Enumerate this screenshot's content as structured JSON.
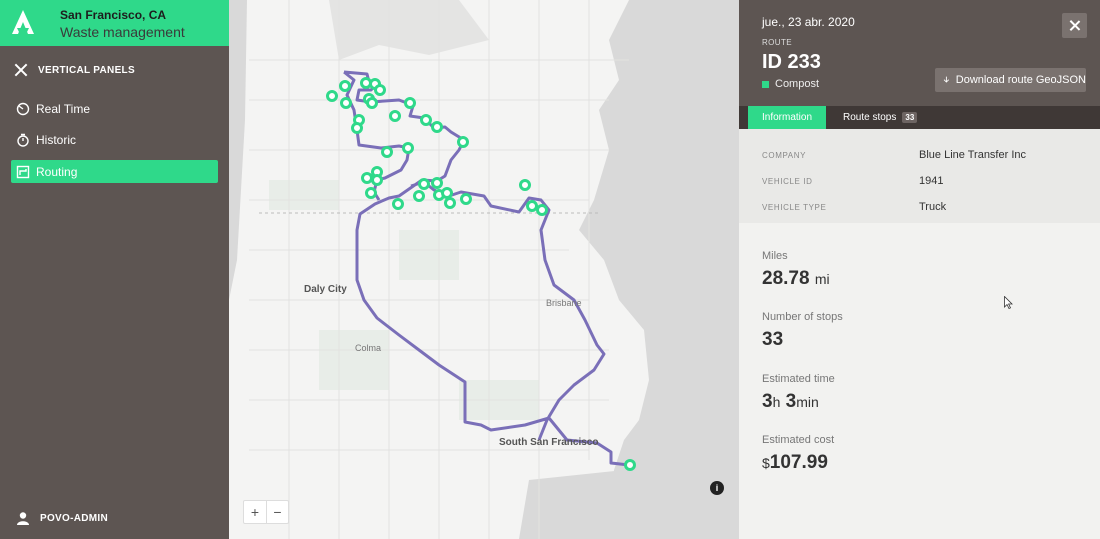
{
  "brand": {
    "city": "San Francisco, CA",
    "subtitle": "Waste management",
    "accent": "#2fd98a",
    "sidebar_bg": "#5d5552"
  },
  "sidebar": {
    "panels_label": "VERTICAL PANELS",
    "items": [
      {
        "label": "Real Time",
        "icon": "speedometer-icon"
      },
      {
        "label": "Historic",
        "icon": "stopwatch-icon"
      },
      {
        "label": "Routing",
        "icon": "route-icon",
        "active": true
      }
    ],
    "user": "POVO-ADMIN"
  },
  "map": {
    "labels": {
      "daly_city": "Daly City",
      "colma": "Colma",
      "brisbane": "Brisbane",
      "south_sf": "South San Francisco"
    },
    "route_color": "#7a6fb8",
    "stop_color": "#2fd98a",
    "zoom_in": "+",
    "zoom_out": "−",
    "info": "i"
  },
  "panel": {
    "date": "jue., 23 abr. 2020",
    "route_label": "ROUTE",
    "route_id": "ID 233",
    "waste_type": "Compost",
    "download_label": "Download route GeoJSON",
    "tabs": {
      "information": "Information",
      "stops": "Route stops",
      "stops_count": "33"
    },
    "details": [
      {
        "key": "COMPANY",
        "value": "Blue Line Transfer Inc"
      },
      {
        "key": "VEHICLE ID",
        "value": "1941"
      },
      {
        "key": "VEHICLE TYPE",
        "value": "Truck"
      }
    ],
    "metrics": {
      "miles_label": "Miles",
      "miles_value": "28.78",
      "miles_unit": "mi",
      "stops_label": "Number of stops",
      "stops_value": "33",
      "time_label": "Estimated time",
      "time_h": "3",
      "time_h_unit": "h",
      "time_m": "3",
      "time_m_unit": "min",
      "cost_label": "Estimated cost",
      "cost_currency": "$",
      "cost_value": "107.99"
    }
  }
}
